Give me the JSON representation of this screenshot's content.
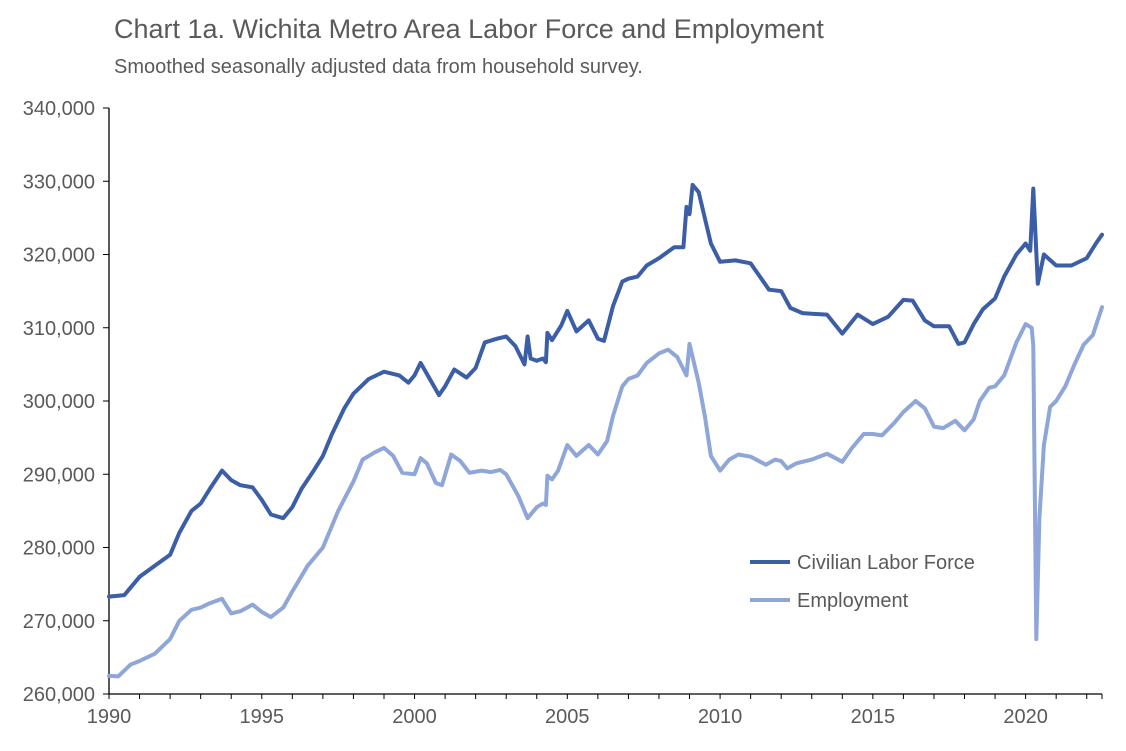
{
  "chart_data": {
    "type": "line",
    "title": "Chart 1a. Wichita Metro Area Labor Force and Employment",
    "subtitle": "Smoothed seasonally adjusted data from household survey.",
    "xlabel": "",
    "ylabel": "",
    "xlim": [
      1990,
      2022.5
    ],
    "ylim": [
      260000,
      340000
    ],
    "x_ticks": [
      1990,
      1995,
      2000,
      2005,
      2010,
      2015,
      2020
    ],
    "y_ticks": [
      260000,
      270000,
      280000,
      290000,
      300000,
      310000,
      320000,
      330000,
      340000
    ],
    "y_tick_labels": [
      "260,000",
      "270,000",
      "280,000",
      "290,000",
      "300,000",
      "310,000",
      "320,000",
      "330,000",
      "340,000"
    ],
    "grid": false,
    "legend_position": "lower-right",
    "series": [
      {
        "name": "Civilian Labor Force",
        "color": "#3b5ea6",
        "points": [
          [
            1990.0,
            273300
          ],
          [
            1990.5,
            273500
          ],
          [
            1991.0,
            276000
          ],
          [
            1991.5,
            277500
          ],
          [
            1992.0,
            279000
          ],
          [
            1992.3,
            282000
          ],
          [
            1992.7,
            285000
          ],
          [
            1993.0,
            286000
          ],
          [
            1993.3,
            288000
          ],
          [
            1993.7,
            290500
          ],
          [
            1994.0,
            289200
          ],
          [
            1994.3,
            288500
          ],
          [
            1994.7,
            288200
          ],
          [
            1995.0,
            286500
          ],
          [
            1995.3,
            284500
          ],
          [
            1995.7,
            284000
          ],
          [
            1996.0,
            285500
          ],
          [
            1996.3,
            288000
          ],
          [
            1996.7,
            290500
          ],
          [
            1997.0,
            292500
          ],
          [
            1997.3,
            295500
          ],
          [
            1997.7,
            299000
          ],
          [
            1998.0,
            301000
          ],
          [
            1998.5,
            303000
          ],
          [
            1999.0,
            304000
          ],
          [
            1999.5,
            303500
          ],
          [
            1999.8,
            302500
          ],
          [
            2000.0,
            303500
          ],
          [
            2000.2,
            305200
          ],
          [
            2000.5,
            303000
          ],
          [
            2000.8,
            300800
          ],
          [
            2001.0,
            302000
          ],
          [
            2001.3,
            304300
          ],
          [
            2001.7,
            303200
          ],
          [
            2002.0,
            304500
          ],
          [
            2002.3,
            308000
          ],
          [
            2002.7,
            308500
          ],
          [
            2003.0,
            308800
          ],
          [
            2003.3,
            307500
          ],
          [
            2003.6,
            305000
          ],
          [
            2003.7,
            308800
          ],
          [
            2003.8,
            305800
          ],
          [
            2004.0,
            305500
          ],
          [
            2004.2,
            305800
          ],
          [
            2004.3,
            305300
          ],
          [
            2004.35,
            309300
          ],
          [
            2004.5,
            308300
          ],
          [
            2004.8,
            310300
          ],
          [
            2005.0,
            312300
          ],
          [
            2005.3,
            309500
          ],
          [
            2005.7,
            311000
          ],
          [
            2006.0,
            308500
          ],
          [
            2006.2,
            308200
          ],
          [
            2006.5,
            313000
          ],
          [
            2006.8,
            316300
          ],
          [
            2007.0,
            316700
          ],
          [
            2007.3,
            317000
          ],
          [
            2007.6,
            318500
          ],
          [
            2008.0,
            319500
          ],
          [
            2008.5,
            321000
          ],
          [
            2008.8,
            321000
          ],
          [
            2008.9,
            326500
          ],
          [
            2009.0,
            325500
          ],
          [
            2009.1,
            329500
          ],
          [
            2009.3,
            328500
          ],
          [
            2009.5,
            325000
          ],
          [
            2009.7,
            321500
          ],
          [
            2010.0,
            319000
          ],
          [
            2010.5,
            319200
          ],
          [
            2011.0,
            318800
          ],
          [
            2011.3,
            317000
          ],
          [
            2011.6,
            315200
          ],
          [
            2012.0,
            315000
          ],
          [
            2012.3,
            312700
          ],
          [
            2012.7,
            312000
          ],
          [
            2013.0,
            311900
          ],
          [
            2013.5,
            311800
          ],
          [
            2014.0,
            309200
          ],
          [
            2014.5,
            311800
          ],
          [
            2015.0,
            310500
          ],
          [
            2015.5,
            311500
          ],
          [
            2016.0,
            313800
          ],
          [
            2016.3,
            313700
          ],
          [
            2016.7,
            311000
          ],
          [
            2017.0,
            310200
          ],
          [
            2017.5,
            310200
          ],
          [
            2017.8,
            307800
          ],
          [
            2018.0,
            308000
          ],
          [
            2018.3,
            310500
          ],
          [
            2018.6,
            312500
          ],
          [
            2019.0,
            314000
          ],
          [
            2019.3,
            317000
          ],
          [
            2019.7,
            320000
          ],
          [
            2020.0,
            321500
          ],
          [
            2020.15,
            320500
          ],
          [
            2020.25,
            329000
          ],
          [
            2020.4,
            316000
          ],
          [
            2020.6,
            320000
          ],
          [
            2021.0,
            318500
          ],
          [
            2021.5,
            318500
          ],
          [
            2022.0,
            319500
          ],
          [
            2022.3,
            321500
          ],
          [
            2022.5,
            322700
          ]
        ]
      },
      {
        "name": "Employment",
        "color": "#8fa6d8",
        "points": [
          [
            1990.0,
            262500
          ],
          [
            1990.3,
            262400
          ],
          [
            1990.7,
            264000
          ],
          [
            1991.0,
            264500
          ],
          [
            1991.5,
            265500
          ],
          [
            1992.0,
            267500
          ],
          [
            1992.3,
            270000
          ],
          [
            1992.7,
            271500
          ],
          [
            1993.0,
            271800
          ],
          [
            1993.3,
            272400
          ],
          [
            1993.7,
            273000
          ],
          [
            1994.0,
            271000
          ],
          [
            1994.3,
            271300
          ],
          [
            1994.7,
            272200
          ],
          [
            1995.0,
            271200
          ],
          [
            1995.3,
            270500
          ],
          [
            1995.7,
            271800
          ],
          [
            1996.0,
            274000
          ],
          [
            1996.5,
            277500
          ],
          [
            1997.0,
            280000
          ],
          [
            1997.5,
            285000
          ],
          [
            1998.0,
            289000
          ],
          [
            1998.3,
            292000
          ],
          [
            1998.7,
            293000
          ],
          [
            1999.0,
            293600
          ],
          [
            1999.3,
            292500
          ],
          [
            1999.6,
            290200
          ],
          [
            2000.0,
            290000
          ],
          [
            2000.2,
            292200
          ],
          [
            2000.4,
            291500
          ],
          [
            2000.7,
            288800
          ],
          [
            2000.9,
            288500
          ],
          [
            2001.2,
            292700
          ],
          [
            2001.5,
            291800
          ],
          [
            2001.8,
            290200
          ],
          [
            2002.2,
            290500
          ],
          [
            2002.5,
            290300
          ],
          [
            2002.8,
            290600
          ],
          [
            2003.0,
            290000
          ],
          [
            2003.4,
            287000
          ],
          [
            2003.7,
            284000
          ],
          [
            2004.0,
            285500
          ],
          [
            2004.2,
            286000
          ],
          [
            2004.3,
            285800
          ],
          [
            2004.35,
            289800
          ],
          [
            2004.5,
            289300
          ],
          [
            2004.7,
            290500
          ],
          [
            2005.0,
            294000
          ],
          [
            2005.3,
            292500
          ],
          [
            2005.7,
            294000
          ],
          [
            2006.0,
            292700
          ],
          [
            2006.3,
            294500
          ],
          [
            2006.5,
            298000
          ],
          [
            2006.8,
            302000
          ],
          [
            2007.0,
            303000
          ],
          [
            2007.3,
            303500
          ],
          [
            2007.6,
            305200
          ],
          [
            2008.0,
            306500
          ],
          [
            2008.3,
            307000
          ],
          [
            2008.6,
            306000
          ],
          [
            2008.9,
            303500
          ],
          [
            2009.0,
            307800
          ],
          [
            2009.3,
            302500
          ],
          [
            2009.5,
            298000
          ],
          [
            2009.7,
            292500
          ],
          [
            2010.0,
            290500
          ],
          [
            2010.3,
            292000
          ],
          [
            2010.6,
            292700
          ],
          [
            2011.0,
            292400
          ],
          [
            2011.5,
            291300
          ],
          [
            2011.8,
            292000
          ],
          [
            2012.0,
            291800
          ],
          [
            2012.2,
            290800
          ],
          [
            2012.5,
            291500
          ],
          [
            2013.0,
            292000
          ],
          [
            2013.5,
            292800
          ],
          [
            2014.0,
            291700
          ],
          [
            2014.3,
            293500
          ],
          [
            2014.7,
            295500
          ],
          [
            2015.0,
            295500
          ],
          [
            2015.3,
            295300
          ],
          [
            2015.7,
            297000
          ],
          [
            2016.0,
            298500
          ],
          [
            2016.4,
            300000
          ],
          [
            2016.7,
            299000
          ],
          [
            2017.0,
            296500
          ],
          [
            2017.3,
            296300
          ],
          [
            2017.7,
            297300
          ],
          [
            2018.0,
            296000
          ],
          [
            2018.3,
            297500
          ],
          [
            2018.5,
            300000
          ],
          [
            2018.8,
            301800
          ],
          [
            2019.0,
            302000
          ],
          [
            2019.3,
            303500
          ],
          [
            2019.7,
            308000
          ],
          [
            2020.0,
            310500
          ],
          [
            2020.2,
            310000
          ],
          [
            2020.25,
            307500
          ],
          [
            2020.35,
            267500
          ],
          [
            2020.45,
            284000
          ],
          [
            2020.6,
            294000
          ],
          [
            2020.8,
            299200
          ],
          [
            2021.0,
            300000
          ],
          [
            2021.3,
            302000
          ],
          [
            2021.6,
            305000
          ],
          [
            2021.9,
            307700
          ],
          [
            2022.2,
            309000
          ],
          [
            2022.5,
            312800
          ]
        ]
      }
    ]
  }
}
